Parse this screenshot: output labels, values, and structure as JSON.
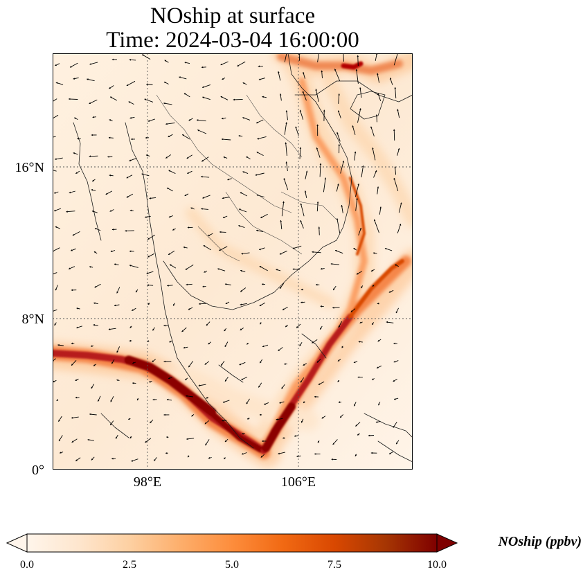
{
  "figure": {
    "title_line1": "NOship at surface",
    "title_line2": "Time: 2024-03-04 16:00:00"
  },
  "map": {
    "lat_labels": [
      "16°N",
      "8°N",
      "0°"
    ],
    "lon_labels": [
      "98°E",
      "106°E"
    ],
    "gridlines": "dotted",
    "field_name": "NOship",
    "colormap": [
      "#fff5eb",
      "#fee6ce",
      "#fdd0a2",
      "#fdae6b",
      "#fd8d3c",
      "#f16913",
      "#d94801",
      "#a63603",
      "#7f0000"
    ],
    "vector_field": "wind arrows"
  },
  "colorbar": {
    "label": "NOship (ppbv)",
    "ticks": [
      "0.0",
      "2.5",
      "5.0",
      "7.5",
      "10.0"
    ],
    "min": 0.0,
    "max": 10.0,
    "extend": "both"
  }
}
